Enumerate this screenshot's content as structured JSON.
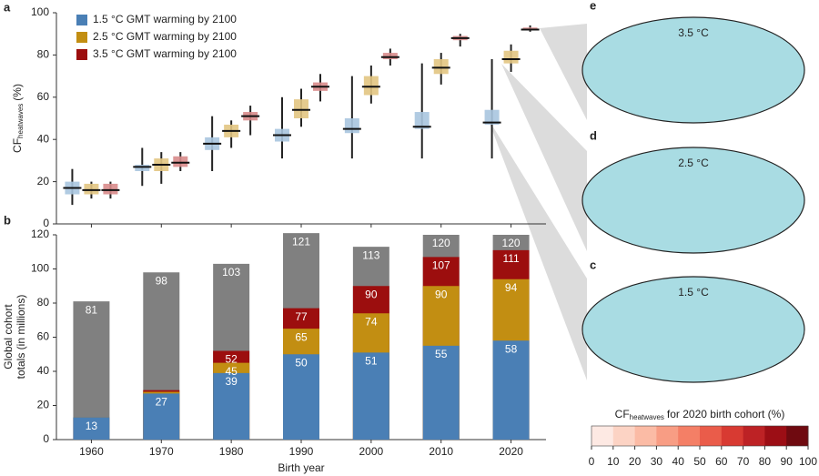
{
  "chart_data": [
    {
      "type": "box",
      "panel": "a",
      "ylabel_parts": [
        "CF",
        "heatwaves",
        "(%)"
      ],
      "categories": [
        "1960",
        "1970",
        "1980",
        "1990",
        "2000",
        "2010",
        "2020"
      ],
      "ylim": [
        0,
        100
      ],
      "yticks": [
        0,
        20,
        40,
        60,
        80,
        100
      ],
      "series": [
        {
          "name": "1.5 °C GMT warming by 2100",
          "color": "#4a7fb5",
          "box_color": "#a9c5df",
          "values": [
            17,
            27,
            38,
            42,
            45,
            46,
            48
          ],
          "q1": [
            14,
            25,
            35,
            39,
            43,
            45,
            47
          ],
          "q3": [
            20,
            28,
            41,
            45,
            50,
            53,
            54
          ],
          "min": [
            9,
            18,
            25,
            31,
            31,
            31,
            31
          ],
          "max": [
            26,
            36,
            51,
            60,
            70,
            76,
            78
          ]
        },
        {
          "name": "2.5 °C GMT warming by 2100",
          "color": "#c28e12",
          "box_color": "#e2c582",
          "values": [
            16,
            28,
            44,
            54,
            65,
            74,
            78
          ],
          "q1": [
            14,
            25,
            41,
            50,
            61,
            71,
            76
          ],
          "q3": [
            19,
            31,
            47,
            59,
            70,
            78,
            82
          ],
          "min": [
            12,
            19,
            36,
            46,
            57,
            66,
            72
          ],
          "max": [
            20,
            34,
            49,
            64,
            75,
            81,
            85
          ]
        },
        {
          "name": "3.5 °C GMT warming by 2100",
          "color": "#9c0e0e",
          "box_color": "#d88b8b",
          "values": [
            16,
            29,
            51,
            65,
            79,
            88,
            92
          ],
          "q1": [
            14,
            27,
            49,
            63,
            78,
            87,
            92
          ],
          "q3": [
            19,
            32,
            53,
            67,
            81,
            89,
            93
          ],
          "min": [
            12,
            25,
            42,
            58,
            75,
            84,
            91
          ],
          "max": [
            20,
            34,
            56,
            71,
            83,
            90,
            94
          ]
        }
      ]
    },
    {
      "type": "bar",
      "panel": "b",
      "ylabel": [
        "Global cohort",
        "totals (in millions)"
      ],
      "xlabel": "Birth year",
      "categories": [
        "1960",
        "1970",
        "1980",
        "1990",
        "2000",
        "2010",
        "2020"
      ],
      "ylim": [
        0,
        120
      ],
      "yticks": [
        0,
        20,
        40,
        60,
        80,
        100,
        120
      ],
      "series": [
        {
          "color": "#808080",
          "values": [
            81,
            98,
            103,
            121,
            113,
            120,
            120
          ],
          "value_labels": [
            "81",
            "98",
            "103",
            "121",
            "113",
            "120",
            "120"
          ]
        },
        {
          "color": "#9c0e0e",
          "values": [
            13,
            29,
            52,
            77,
            90,
            107,
            111
          ],
          "value_labels": [
            null,
            null,
            "52",
            "77",
            "90",
            "107",
            "111"
          ]
        },
        {
          "color": "#c28e12",
          "values": [
            13,
            28,
            45,
            65,
            74,
            90,
            94
          ],
          "value_labels": [
            null,
            null,
            "45",
            "65",
            "74",
            "90",
            "94"
          ]
        },
        {
          "color": "#4a7fb5",
          "values": [
            13,
            27,
            39,
            50,
            51,
            55,
            58
          ],
          "value_labels": [
            "13",
            "27",
            "39",
            "50",
            "51",
            "55",
            "58"
          ]
        }
      ]
    }
  ],
  "maps": [
    {
      "panel": "e",
      "title": "3.5 °C"
    },
    {
      "panel": "d",
      "title": "2.5 °C"
    },
    {
      "panel": "c",
      "title": "1.5 °C"
    }
  ],
  "colorbar": {
    "title_parts": [
      "CF",
      "heatwaves",
      "for 2020 birth cohort (%)"
    ],
    "ticks": [
      0,
      10,
      20,
      30,
      40,
      50,
      60,
      70,
      80,
      90,
      100
    ],
    "colors": [
      "#fde9e3",
      "#fcd3c4",
      "#fbbba5",
      "#f89d84",
      "#f47f66",
      "#ea5c4a",
      "#d83a32",
      "#bd2225",
      "#9c0e15",
      "#6f0a10"
    ]
  }
}
